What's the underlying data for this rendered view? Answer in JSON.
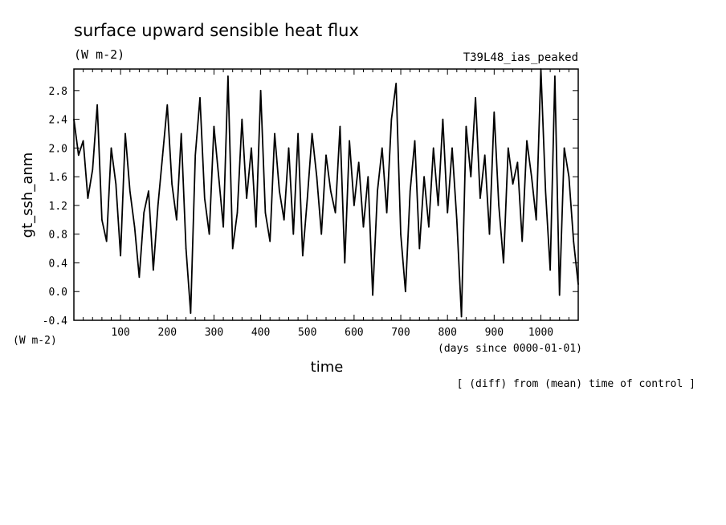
{
  "chart_data": {
    "type": "line",
    "title": "surface upward sensible heat flux",
    "units": "(W m-2)",
    "run_label": "T39L48_ias_peaked",
    "ylabel": "gt_ssh_anm",
    "yunits": "(W m-2)",
    "xlabel": "time",
    "xunits": "(days since 0000-01-01)",
    "footnote": "[ (diff) from (mean) time of control ]",
    "xlim": [
      0,
      1080
    ],
    "ylim": [
      -0.4,
      3.1
    ],
    "xticks": [
      100,
      200,
      300,
      400,
      500,
      600,
      700,
      800,
      900,
      1000
    ],
    "xtick_labels": [
      "100",
      "200",
      "300",
      "400",
      "500",
      "600",
      "700",
      "800",
      "900",
      "1000"
    ],
    "yticks": [
      -0.4,
      0.0,
      0.4,
      0.8,
      1.2,
      1.6,
      2.0,
      2.4,
      2.8
    ],
    "ytick_labels": [
      "-0.4",
      "0.0",
      "0.4",
      "0.8",
      "1.2",
      "1.6",
      "2.0",
      "2.4",
      "2.8"
    ],
    "grid": false,
    "line_color": "#000000",
    "series": [
      {
        "x": [
          0,
          10,
          20,
          30,
          40,
          50,
          60,
          70,
          80,
          90,
          100,
          110,
          120,
          130,
          140,
          150,
          160,
          170,
          180,
          190,
          200,
          210,
          220,
          230,
          240,
          250,
          260,
          270,
          280,
          290,
          300,
          310,
          320,
          330,
          340,
          350,
          360,
          370,
          380,
          390,
          400,
          410,
          420,
          430,
          440,
          450,
          460,
          470,
          480,
          490,
          500,
          510,
          520,
          530,
          540,
          550,
          560,
          570,
          580,
          590,
          600,
          610,
          620,
          630,
          640,
          650,
          660,
          670,
          680,
          690,
          700,
          710,
          720,
          730,
          740,
          750,
          760,
          770,
          780,
          790,
          800,
          810,
          820,
          830,
          840,
          850,
          860,
          870,
          880,
          890,
          900,
          910,
          920,
          930,
          940,
          950,
          960,
          970,
          980,
          990,
          1000,
          1010,
          1020,
          1030,
          1040,
          1050,
          1060,
          1070,
          1080
        ],
        "y": [
          2.4,
          1.9,
          2.1,
          1.3,
          1.7,
          2.6,
          1.0,
          0.7,
          2.0,
          1.5,
          0.5,
          2.2,
          1.4,
          0.9,
          0.2,
          1.1,
          1.4,
          0.3,
          1.2,
          1.9,
          2.6,
          1.5,
          1.0,
          2.2,
          0.6,
          -0.3,
          1.9,
          2.7,
          1.3,
          0.8,
          2.3,
          1.6,
          0.9,
          3.0,
          0.6,
          1.1,
          2.4,
          1.3,
          2.0,
          0.9,
          2.8,
          1.1,
          0.7,
          2.2,
          1.4,
          1.0,
          2.0,
          0.8,
          2.2,
          0.5,
          1.3,
          2.2,
          1.6,
          0.8,
          1.9,
          1.4,
          1.1,
          2.3,
          0.4,
          2.1,
          1.2,
          1.8,
          0.9,
          1.6,
          -0.05,
          1.4,
          2.0,
          1.1,
          2.4,
          2.9,
          0.8,
          0.0,
          1.4,
          2.1,
          0.6,
          1.6,
          0.9,
          2.0,
          1.2,
          2.4,
          1.1,
          2.0,
          1.0,
          -0.35,
          2.3,
          1.6,
          2.7,
          1.3,
          1.9,
          0.8,
          2.5,
          1.2,
          0.4,
          2.0,
          1.5,
          1.8,
          0.7,
          2.1,
          1.6,
          1.0,
          3.1,
          1.4,
          0.3,
          3.0,
          -0.05,
          2.0,
          1.6,
          0.7,
          0.1
        ]
      }
    ]
  }
}
